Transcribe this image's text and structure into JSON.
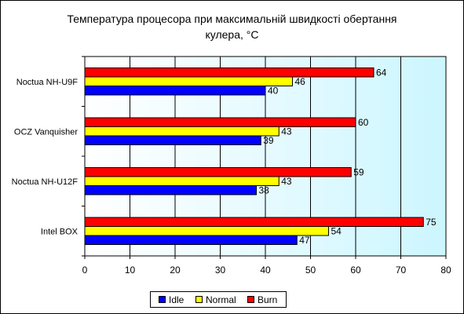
{
  "chart_data": {
    "type": "bar",
    "orientation": "horizontal",
    "title_line1": "Температура процесора при максимальній швидкості обертання",
    "title_line2": "кулера, °С",
    "categories": [
      "Intel BOX",
      "Noctua NH-U12F",
      "OCZ Vanquisher",
      "Noctua NH-U9F"
    ],
    "series": [
      {
        "name": "Idle",
        "color": "#0000FF",
        "values": [
          47,
          38,
          39,
          40
        ]
      },
      {
        "name": "Normal",
        "color": "#FFFF00",
        "values": [
          54,
          43,
          43,
          46
        ]
      },
      {
        "name": "Burn",
        "color": "#FF0000",
        "values": [
          75,
          59,
          60,
          64
        ]
      }
    ],
    "xlim": [
      0,
      80
    ],
    "xticks": [
      0,
      10,
      20,
      30,
      40,
      50,
      60,
      70,
      80
    ],
    "grid": true,
    "legend_position": "bottom"
  }
}
